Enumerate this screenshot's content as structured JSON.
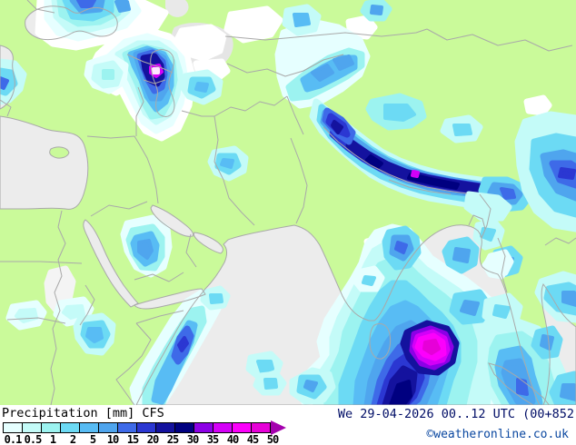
{
  "footer": {
    "title": "Precipitation [mm] CFS",
    "datetime": "We 29-04-2026 00..12 UTC (00+852",
    "copyright": "©weatheronline.co.uk"
  },
  "legend": {
    "values": [
      "0.1",
      "0.5",
      "1",
      "2",
      "5",
      "10",
      "15",
      "20",
      "25",
      "30",
      "35",
      "40",
      "45",
      "50"
    ],
    "colors": [
      "#E6FFFF",
      "#C4FBF8",
      "#9CF3F0",
      "#6CDAF4",
      "#58BCF4",
      "#4FA5EE",
      "#3E6AE8",
      "#2B37D2",
      "#14129E",
      "#000080",
      "#8C00E6",
      "#D400F8",
      "#FC00FC",
      "#E600D8"
    ],
    "arrow_color": "#A400AE"
  },
  "map": {
    "land_color": "#CAFA9A",
    "sea_color": "#ECECEC",
    "coast_color": "#A9A9A9",
    "trace_color": "#FFFFFF"
  }
}
